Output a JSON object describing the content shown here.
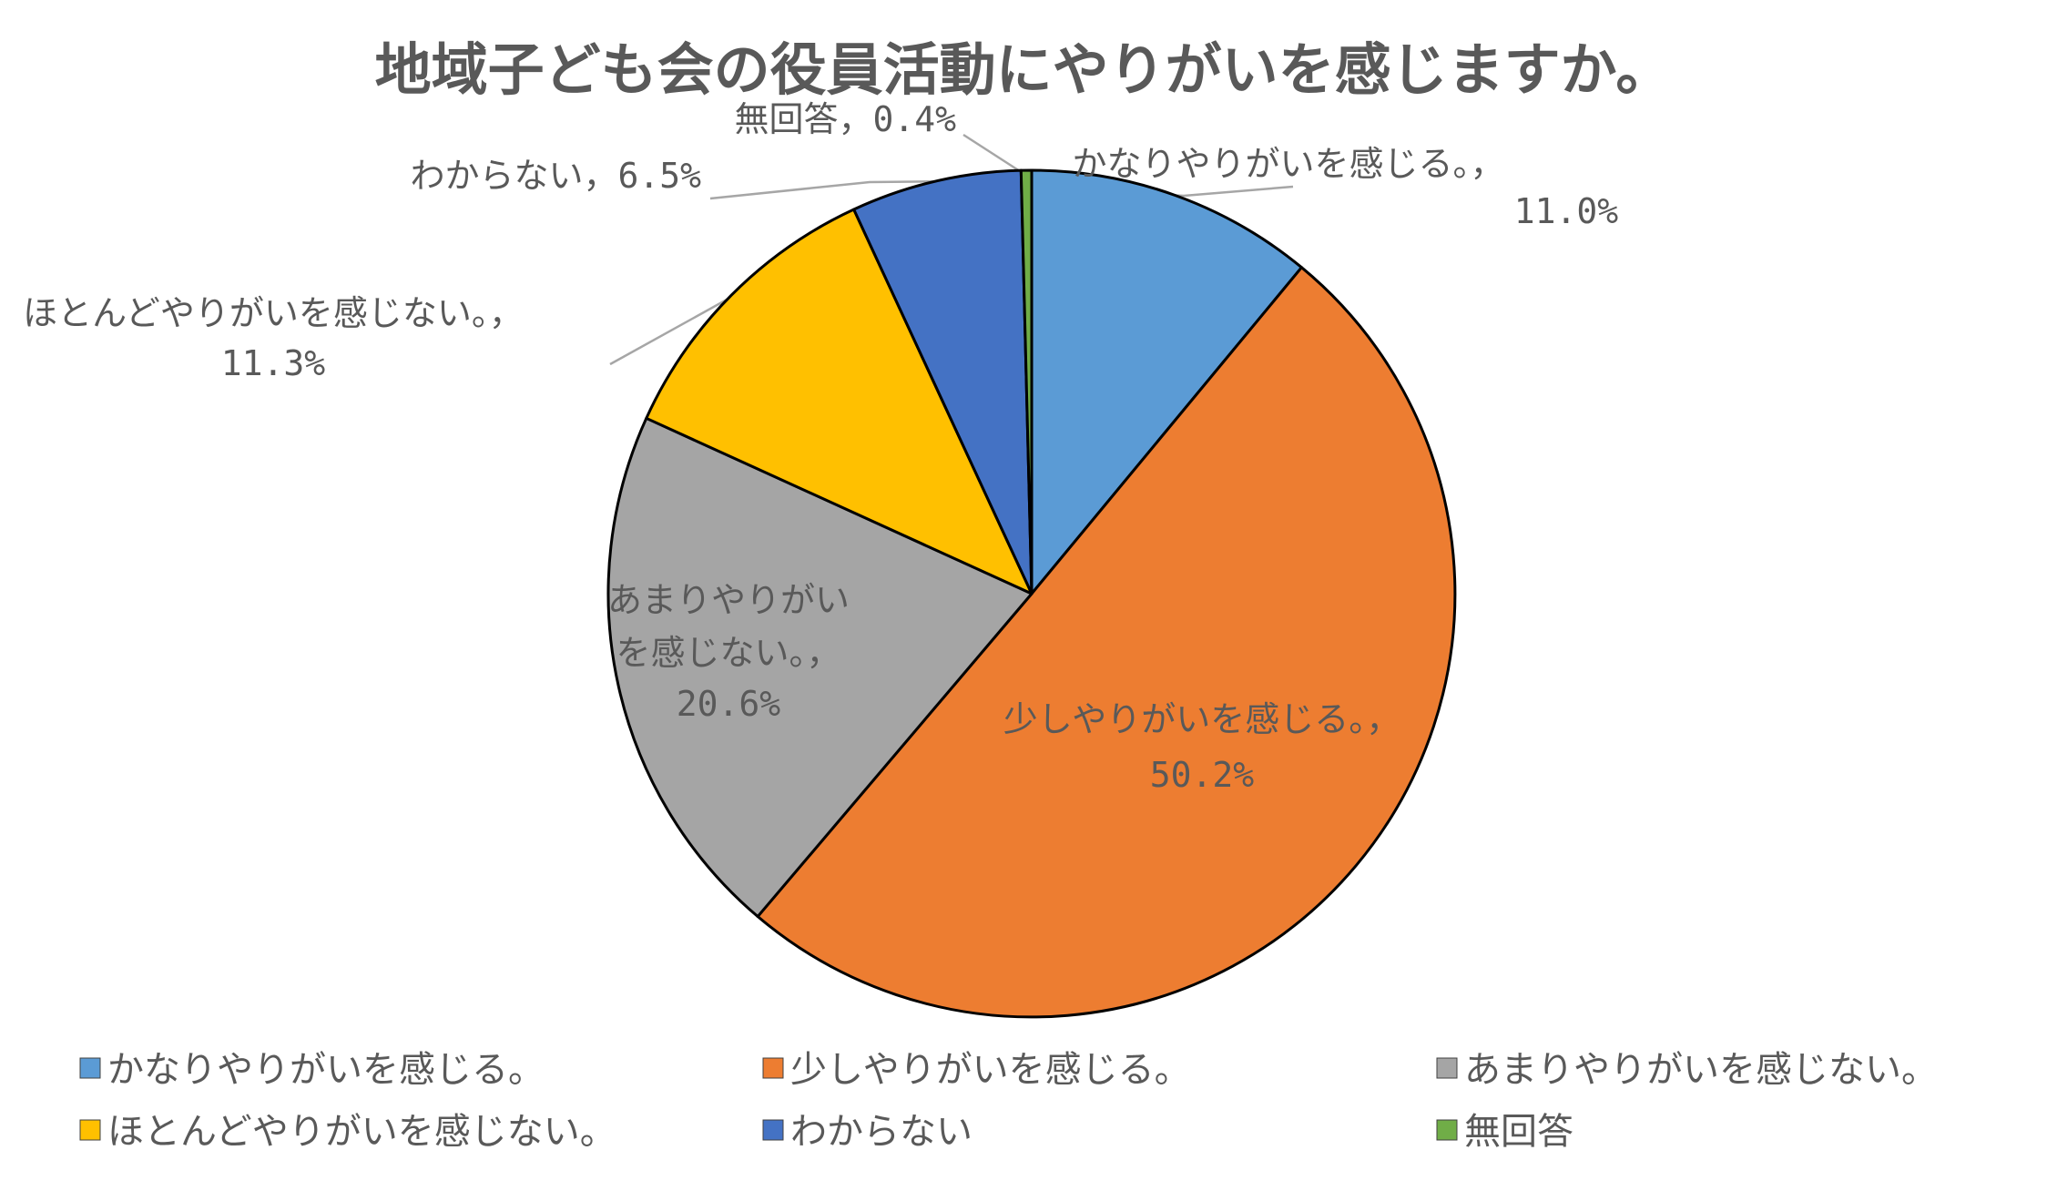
{
  "chart_data": {
    "type": "pie",
    "title": "地域子ども会の役員活動にやりがいを感じますか。",
    "categories": [
      "かなりやりがいを感じる。",
      "少しやりがいを感じる。",
      "あまりやりがいを感じない。",
      "ほとんどやりがいを感じない。",
      "わからない",
      "無回答"
    ],
    "values": [
      11.0,
      50.2,
      20.6,
      11.3,
      6.5,
      0.4
    ],
    "value_labels": [
      "11.0%",
      "50.2%",
      "20.6%",
      "11.3%",
      "6.5%",
      "0.4%"
    ],
    "colors": [
      "#5B9BD5",
      "#ED7D31",
      "#A5A5A5",
      "#FFC000",
      "#4472C4",
      "#70AD47"
    ],
    "legend_position": "bottom"
  }
}
